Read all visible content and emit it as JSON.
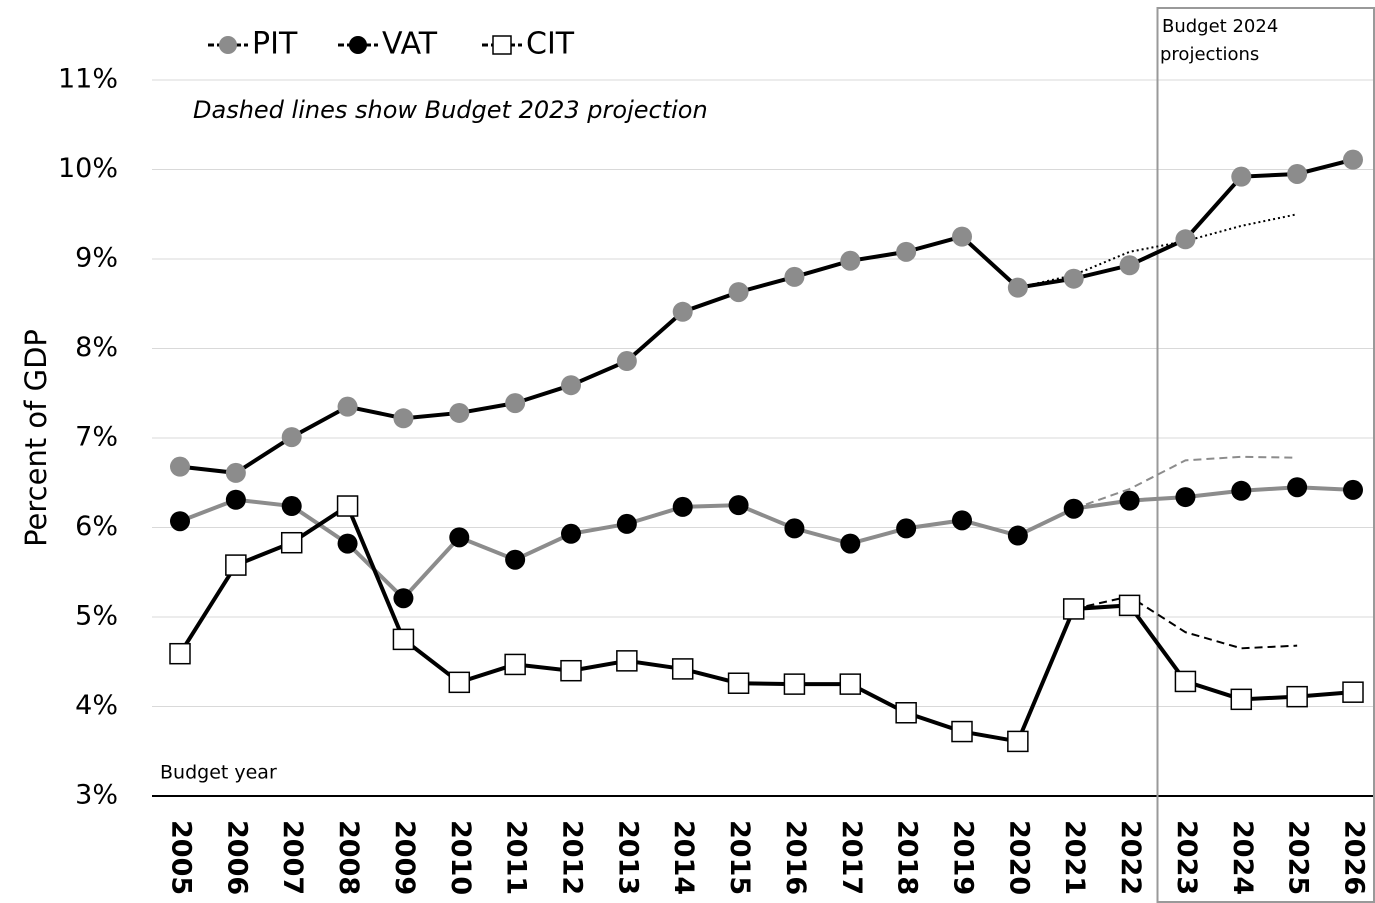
{
  "chart_data": {
    "type": "line",
    "y_label": "Percent of GDP",
    "annotations": {
      "note": "Dashed lines show Budget 2023 projection",
      "x_caption": "Budget year",
      "projection_box": [
        "Budget 2024",
        "projections"
      ]
    },
    "categories": [
      "2005",
      "2006",
      "2007",
      "2008",
      "2009",
      "2010",
      "2011",
      "2012",
      "2013",
      "2014",
      "2015",
      "2016",
      "2017",
      "2018",
      "2019",
      "2020",
      "2021",
      "2022",
      "2023",
      "2024",
      "2025",
      "2026"
    ],
    "projection_start": "2023",
    "series": [
      {
        "name": "PIT",
        "color": "#000000",
        "marker": "circle",
        "marker_color": "#8c8c8c",
        "values": [
          6.68,
          6.61,
          7.01,
          7.35,
          7.22,
          7.28,
          7.39,
          7.59,
          7.86,
          8.41,
          8.63,
          8.8,
          8.98,
          9.08,
          9.25,
          8.68,
          8.78,
          8.93,
          9.22,
          9.92,
          9.95,
          10.11
        ]
      },
      {
        "name": "VAT",
        "color": "#8c8c8c",
        "marker": "circle",
        "marker_color": "#000000",
        "values": [
          6.07,
          6.31,
          6.24,
          5.82,
          5.21,
          5.89,
          5.64,
          5.93,
          6.04,
          6.23,
          6.25,
          5.99,
          5.82,
          5.99,
          6.08,
          5.91,
          6.21,
          6.3,
          6.34,
          6.41,
          6.45,
          6.42
        ]
      },
      {
        "name": "CIT",
        "color": "#000000",
        "marker": "square",
        "marker_color": "#ffffff",
        "values": [
          4.59,
          5.58,
          5.83,
          6.24,
          4.75,
          4.27,
          4.47,
          4.4,
          4.51,
          4.42,
          4.26,
          4.25,
          4.25,
          3.93,
          3.72,
          3.61,
          5.09,
          5.13,
          4.28,
          4.08,
          4.11,
          4.16
        ]
      }
    ],
    "projections": [
      {
        "color": "#000000",
        "style": "dotted",
        "values": [
          null,
          null,
          null,
          null,
          null,
          null,
          null,
          null,
          null,
          null,
          null,
          null,
          null,
          null,
          null,
          8.68,
          8.82,
          9.08,
          9.2,
          9.37,
          9.5,
          null
        ]
      },
      {
        "color": "#8c8c8c",
        "style": "dashed",
        "values": [
          null,
          null,
          null,
          null,
          null,
          null,
          null,
          null,
          null,
          null,
          null,
          null,
          null,
          null,
          null,
          null,
          6.21,
          6.43,
          6.75,
          6.79,
          6.78,
          null
        ]
      },
      {
        "color": "#000000",
        "style": "dashed",
        "values": [
          null,
          null,
          null,
          null,
          null,
          null,
          null,
          null,
          null,
          null,
          null,
          null,
          null,
          null,
          null,
          null,
          5.09,
          5.23,
          4.83,
          4.65,
          4.68,
          null
        ]
      }
    ],
    "ylim": [
      3,
      11
    ],
    "yticks": [
      {
        "value": 3,
        "label": "3%"
      },
      {
        "value": 4,
        "label": "4%"
      },
      {
        "value": 5,
        "label": "5%"
      },
      {
        "value": 6,
        "label": "6%"
      },
      {
        "value": 7,
        "label": "7%"
      },
      {
        "value": 8,
        "label": "8%"
      },
      {
        "value": 9,
        "label": "9%"
      },
      {
        "value": 10,
        "label": "10%"
      },
      {
        "value": 11,
        "label": "11%"
      }
    ],
    "grid": true,
    "legend": "top-left"
  }
}
